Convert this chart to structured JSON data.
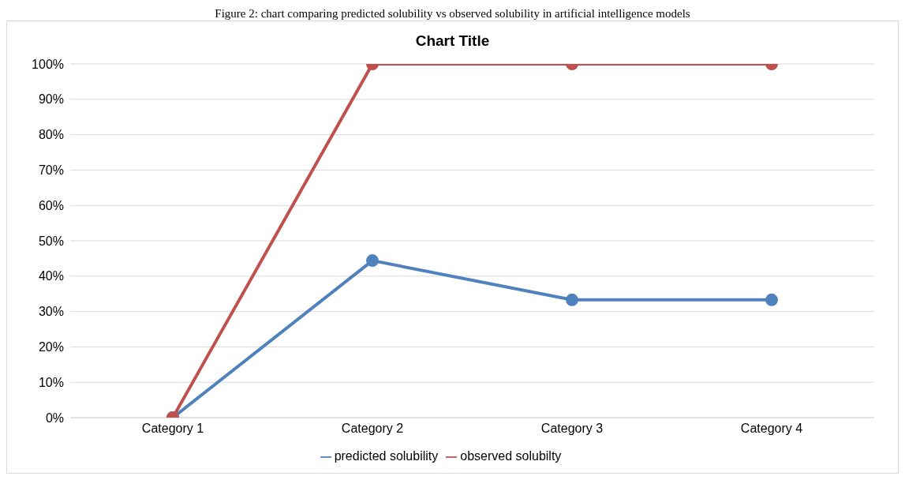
{
  "chart_data": {
    "type": "line",
    "title": "Chart Title",
    "annotations": [
      "Figure 2: chart comparing predicted solubility vs observed solubility in artificial intelligence models"
    ],
    "categories": [
      "Category 1",
      "Category 2",
      "Category 3",
      "Category 4"
    ],
    "series": [
      {
        "name": "predicted solubility",
        "color": "#4f81bd",
        "values": [
          0,
          44.4,
          33.3,
          33.3
        ]
      },
      {
        "name": "observed solubilty",
        "color": "#c0504d",
        "values": [
          0,
          100,
          100,
          100
        ]
      }
    ],
    "ylim": [
      0,
      100
    ],
    "yticks": [
      {
        "value": 0,
        "label": "0%"
      },
      {
        "value": 10,
        "label": "10%"
      },
      {
        "value": 20,
        "label": "20%"
      },
      {
        "value": 30,
        "label": "30%"
      },
      {
        "value": 40,
        "label": "40%"
      },
      {
        "value": 50,
        "label": "50%"
      },
      {
        "value": 60,
        "label": "60%"
      },
      {
        "value": 70,
        "label": "70%"
      },
      {
        "value": 80,
        "label": "80%"
      },
      {
        "value": 90,
        "label": "90%"
      },
      {
        "value": 100,
        "label": "100%"
      }
    ],
    "grid": "y",
    "legend": "bottom",
    "marker": "circle",
    "line_style": "solid"
  }
}
